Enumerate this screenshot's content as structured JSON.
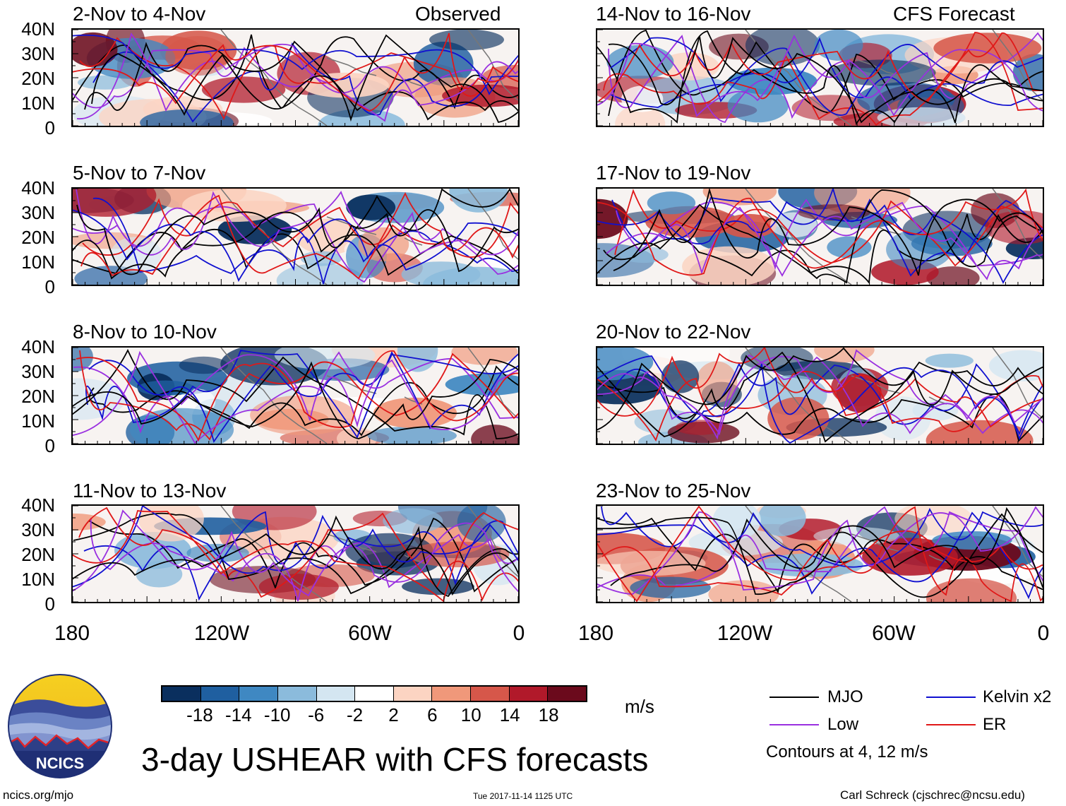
{
  "header": {
    "observed_label": "Observed",
    "forecast_label": "CFS Forecast"
  },
  "panels": {
    "left": [
      {
        "title": "2-Nov to 4-Nov"
      },
      {
        "title": "5-Nov to 7-Nov"
      },
      {
        "title": "8-Nov to 10-Nov"
      },
      {
        "title": "11-Nov to 13-Nov"
      }
    ],
    "right": [
      {
        "title": "14-Nov to 16-Nov"
      },
      {
        "title": "17-Nov to 19-Nov"
      },
      {
        "title": "20-Nov to 22-Nov"
      },
      {
        "title": "23-Nov to 25-Nov"
      }
    ]
  },
  "axes": {
    "lat_labels": [
      "40N",
      "30N",
      "20N",
      "10N",
      "0"
    ],
    "lon_labels": [
      "180",
      "120W",
      "60W",
      "0"
    ]
  },
  "colorbar": {
    "unit": "m/s",
    "labels": [
      "-18",
      "-14",
      "-10",
      "-6",
      "-2",
      "2",
      "6",
      "10",
      "14",
      "18"
    ],
    "colors": [
      "#0a2f5e",
      "#1f5fa0",
      "#3f88c2",
      "#8bbbdc",
      "#d4e6f1",
      "#ffffff",
      "#fcd4c2",
      "#f0987a",
      "#d6574a",
      "#b1192a",
      "#6b0a1c"
    ]
  },
  "legend": {
    "items": [
      {
        "label": "MJO",
        "color": "#000000"
      },
      {
        "label": "Kelvin x2",
        "color": "#1010d0"
      },
      {
        "label": "Low",
        "color": "#9a30e0"
      },
      {
        "label": "ER",
        "color": "#e01818"
      }
    ],
    "note": "Contours at 4, 12 m/s"
  },
  "main_title": "3-day USHEAR with CFS forecasts",
  "logo": {
    "text": "NCICS"
  },
  "footer": {
    "url": "ncics.org/mjo",
    "timestamp": "Tue 2017-11-14 1125 UTC",
    "author": "Carl Schreck (cjschrec@ncsu.edu)"
  }
}
